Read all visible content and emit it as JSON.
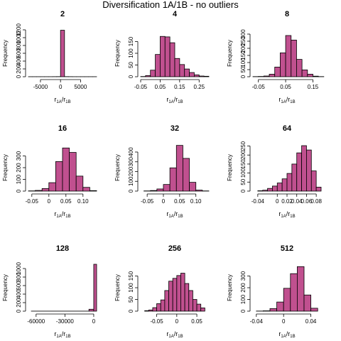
{
  "title": "Diversification 1A/1B - no outliers",
  "colors": {
    "bar_fill": "#C0508F",
    "bar_stroke": "#000000",
    "axis": "#000000"
  },
  "chart_data": [
    {
      "type": "bar",
      "title": "2",
      "ylabel": "Frequency",
      "xlabel": "r1A/r1B",
      "xlim": [
        -8000,
        9000
      ],
      "ylim": [
        0,
        1200
      ],
      "xticks": [
        -5000,
        0,
        5000
      ],
      "yticks": [
        0,
        200,
        400,
        600,
        800,
        1000,
        1200
      ],
      "bins": [
        {
          "x0": -8000,
          "x1": -7000,
          "v": 1
        },
        {
          "x0": -7000,
          "x1": -6000,
          "v": 1
        },
        {
          "x0": -6000,
          "x1": -5000,
          "v": 1
        },
        {
          "x0": -5000,
          "x1": -4000,
          "v": 1
        },
        {
          "x0": -4000,
          "x1": -3000,
          "v": 1
        },
        {
          "x0": -3000,
          "x1": -2000,
          "v": 1
        },
        {
          "x0": -2000,
          "x1": -1000,
          "v": 2
        },
        {
          "x0": -1000,
          "x1": 0,
          "v": 3
        },
        {
          "x0": 0,
          "x1": 1000,
          "v": 1190
        },
        {
          "x0": 1000,
          "x1": 2000,
          "v": 3
        },
        {
          "x0": 2000,
          "x1": 3000,
          "v": 2
        },
        {
          "x0": 3000,
          "x1": 4000,
          "v": 1
        },
        {
          "x0": 4000,
          "x1": 5000,
          "v": 1
        },
        {
          "x0": 5000,
          "x1": 6000,
          "v": 1
        },
        {
          "x0": 6000,
          "x1": 7000,
          "v": 1
        },
        {
          "x0": 7000,
          "x1": 8000,
          "v": 1
        },
        {
          "x0": 8000,
          "x1": 9000,
          "v": 1
        }
      ]
    },
    {
      "type": "bar",
      "title": "4",
      "ylabel": "Frequency",
      "xlabel": "r1A/r1B",
      "xlim": [
        -0.05,
        0.3
      ],
      "ylim": [
        0,
        200
      ],
      "xticks": [
        -0.05,
        0.05,
        0.15,
        0.25
      ],
      "yticks": [
        0,
        50,
        100,
        150
      ],
      "bins": [
        {
          "x0": -0.05,
          "x1": -0.025,
          "v": 1
        },
        {
          "x0": -0.025,
          "x1": 0.0,
          "v": 5
        },
        {
          "x0": 0.0,
          "x1": 0.025,
          "v": 28
        },
        {
          "x0": 0.025,
          "x1": 0.05,
          "v": 95
        },
        {
          "x0": 0.05,
          "x1": 0.075,
          "v": 172
        },
        {
          "x0": 0.075,
          "x1": 0.1,
          "v": 170
        },
        {
          "x0": 0.1,
          "x1": 0.125,
          "v": 145
        },
        {
          "x0": 0.125,
          "x1": 0.15,
          "v": 78
        },
        {
          "x0": 0.15,
          "x1": 0.175,
          "v": 52
        },
        {
          "x0": 0.175,
          "x1": 0.2,
          "v": 33
        },
        {
          "x0": 0.2,
          "x1": 0.225,
          "v": 18
        },
        {
          "x0": 0.225,
          "x1": 0.25,
          "v": 8
        },
        {
          "x0": 0.25,
          "x1": 0.275,
          "v": 3
        },
        {
          "x0": 0.275,
          "x1": 0.3,
          "v": 2
        }
      ]
    },
    {
      "type": "bar",
      "title": "8",
      "ylabel": "Frequency",
      "xlabel": "r1A/r1B",
      "xlim": [
        -0.07,
        0.18
      ],
      "ylim": [
        0,
        330
      ],
      "xticks": [
        -0.05,
        0.05,
        0.15
      ],
      "yticks": [
        0,
        50,
        100,
        150,
        200,
        250,
        300
      ],
      "bins": [
        {
          "x0": -0.07,
          "x1": -0.05,
          "v": 1
        },
        {
          "x0": -0.05,
          "x1": -0.03,
          "v": 2
        },
        {
          "x0": -0.03,
          "x1": -0.01,
          "v": 5
        },
        {
          "x0": -0.01,
          "x1": 0.01,
          "v": 18
        },
        {
          "x0": 0.01,
          "x1": 0.03,
          "v": 68
        },
        {
          "x0": 0.03,
          "x1": 0.05,
          "v": 168
        },
        {
          "x0": 0.05,
          "x1": 0.07,
          "v": 290
        },
        {
          "x0": 0.07,
          "x1": 0.09,
          "v": 258
        },
        {
          "x0": 0.09,
          "x1": 0.11,
          "v": 122
        },
        {
          "x0": 0.11,
          "x1": 0.13,
          "v": 48
        },
        {
          "x0": 0.13,
          "x1": 0.15,
          "v": 18
        },
        {
          "x0": 0.15,
          "x1": 0.17,
          "v": 4
        },
        {
          "x0": 0.17,
          "x1": 0.19,
          "v": 1
        }
      ]
    },
    {
      "type": "bar",
      "title": "16",
      "ylabel": "Frequency",
      "xlabel": "r1A/r1B",
      "xlim": [
        -0.06,
        0.14
      ],
      "ylim": [
        0,
        400
      ],
      "xticks": [
        -0.05,
        0.0,
        0.05,
        0.1
      ],
      "yticks": [
        0,
        100,
        200,
        300
      ],
      "bins": [
        {
          "x0": -0.06,
          "x1": -0.04,
          "v": 2
        },
        {
          "x0": -0.04,
          "x1": -0.02,
          "v": 6
        },
        {
          "x0": -0.02,
          "x1": 0.0,
          "v": 22
        },
        {
          "x0": 0.0,
          "x1": 0.02,
          "v": 72
        },
        {
          "x0": 0.02,
          "x1": 0.04,
          "v": 252
        },
        {
          "x0": 0.04,
          "x1": 0.06,
          "v": 368
        },
        {
          "x0": 0.06,
          "x1": 0.08,
          "v": 330
        },
        {
          "x0": 0.08,
          "x1": 0.1,
          "v": 128
        },
        {
          "x0": 0.1,
          "x1": 0.12,
          "v": 32
        },
        {
          "x0": 0.12,
          "x1": 0.14,
          "v": 4
        }
      ]
    },
    {
      "type": "bar",
      "title": "32",
      "ylabel": "Frequency",
      "xlabel": "r1A/r1B",
      "xlim": [
        -0.07,
        0.14
      ],
      "ylim": [
        0,
        480
      ],
      "xticks": [
        -0.05,
        0.0,
        0.05,
        0.1
      ],
      "yticks": [
        0,
        100,
        200,
        300,
        400
      ],
      "bins": [
        {
          "x0": -0.06,
          "x1": -0.04,
          "v": 2
        },
        {
          "x0": -0.04,
          "x1": -0.02,
          "v": 6
        },
        {
          "x0": -0.02,
          "x1": 0.0,
          "v": 22
        },
        {
          "x0": 0.0,
          "x1": 0.02,
          "v": 68
        },
        {
          "x0": 0.02,
          "x1": 0.04,
          "v": 238
        },
        {
          "x0": 0.04,
          "x1": 0.06,
          "v": 468
        },
        {
          "x0": 0.06,
          "x1": 0.08,
          "v": 335
        },
        {
          "x0": 0.08,
          "x1": 0.1,
          "v": 90
        },
        {
          "x0": 0.1,
          "x1": 0.12,
          "v": 10
        },
        {
          "x0": 0.12,
          "x1": 0.14,
          "v": 2
        }
      ]
    },
    {
      "type": "bar",
      "title": "64",
      "ylabel": "Frequency",
      "xlabel": "r1A/r1B",
      "xlim": [
        -0.05,
        0.09
      ],
      "ylim": [
        0,
        260
      ],
      "xticks": [
        -0.04,
        0.0,
        0.02,
        0.04,
        0.06,
        0.08
      ],
      "yticks": [
        0,
        50,
        100,
        150,
        200,
        250
      ],
      "bins": [
        {
          "x0": -0.04,
          "x1": -0.03,
          "v": 2
        },
        {
          "x0": -0.03,
          "x1": -0.02,
          "v": 5
        },
        {
          "x0": -0.02,
          "x1": -0.01,
          "v": 15
        },
        {
          "x0": -0.01,
          "x1": 0.0,
          "v": 28
        },
        {
          "x0": 0.0,
          "x1": 0.01,
          "v": 45
        },
        {
          "x0": 0.01,
          "x1": 0.02,
          "v": 68
        },
        {
          "x0": 0.02,
          "x1": 0.03,
          "v": 98
        },
        {
          "x0": 0.03,
          "x1": 0.04,
          "v": 150
        },
        {
          "x0": 0.04,
          "x1": 0.05,
          "v": 212
        },
        {
          "x0": 0.05,
          "x1": 0.06,
          "v": 252
        },
        {
          "x0": 0.06,
          "x1": 0.07,
          "v": 228
        },
        {
          "x0": 0.07,
          "x1": 0.08,
          "v": 112
        },
        {
          "x0": 0.08,
          "x1": 0.09,
          "v": 22
        }
      ]
    },
    {
      "type": "bar",
      "title": "128",
      "ylabel": "Frequency",
      "xlabel": "r1A/r1B",
      "xlim": [
        -68000,
        3000
      ],
      "ylim": [
        0,
        1100
      ],
      "xticks": [
        -60000,
        -30000,
        0
      ],
      "yticks": [
        0,
        200,
        400,
        600,
        800,
        1000
      ],
      "bins": [
        {
          "x0": -65000,
          "x1": -5000,
          "v": 1
        },
        {
          "x0": -5000,
          "x1": 0,
          "v": 45
        },
        {
          "x0": 0,
          "x1": 3000,
          "v": 1100
        }
      ]
    },
    {
      "type": "bar",
      "title": "256",
      "ylabel": "Frequency",
      "xlabel": "r1A/r1B",
      "xlim": [
        -0.09,
        0.08
      ],
      "ylim": [
        0,
        200
      ],
      "xticks": [
        -0.05,
        0.0,
        0.05
      ],
      "yticks": [
        0,
        50,
        100,
        150
      ],
      "bins": [
        {
          "x0": -0.08,
          "x1": -0.07,
          "v": 2
        },
        {
          "x0": -0.07,
          "x1": -0.06,
          "v": 5
        },
        {
          "x0": -0.06,
          "x1": -0.05,
          "v": 15
        },
        {
          "x0": -0.05,
          "x1": -0.04,
          "v": 32
        },
        {
          "x0": -0.04,
          "x1": -0.03,
          "v": 48
        },
        {
          "x0": -0.03,
          "x1": -0.02,
          "v": 88
        },
        {
          "x0": -0.02,
          "x1": -0.01,
          "v": 128
        },
        {
          "x0": -0.01,
          "x1": 0.0,
          "v": 140
        },
        {
          "x0": 0.0,
          "x1": 0.01,
          "v": 152
        },
        {
          "x0": 0.01,
          "x1": 0.02,
          "v": 162
        },
        {
          "x0": 0.02,
          "x1": 0.03,
          "v": 118
        },
        {
          "x0": 0.03,
          "x1": 0.04,
          "v": 88
        },
        {
          "x0": 0.04,
          "x1": 0.05,
          "v": 50
        },
        {
          "x0": 0.05,
          "x1": 0.06,
          "v": 30
        },
        {
          "x0": 0.06,
          "x1": 0.07,
          "v": 14
        }
      ]
    },
    {
      "type": "bar",
      "title": "512",
      "ylabel": "Frequency",
      "xlabel": "r1A/r1B",
      "xlim": [
        -0.045,
        0.055
      ],
      "ylim": [
        0,
        400
      ],
      "xticks": [
        -0.04,
        0.0,
        0.04
      ],
      "yticks": [
        0,
        100,
        200,
        300
      ],
      "bins": [
        {
          "x0": -0.04,
          "x1": -0.03,
          "v": 1
        },
        {
          "x0": -0.03,
          "x1": -0.02,
          "v": 3
        },
        {
          "x0": -0.02,
          "x1": -0.01,
          "v": 22
        },
        {
          "x0": -0.01,
          "x1": 0.0,
          "v": 78
        },
        {
          "x0": 0.0,
          "x1": 0.01,
          "v": 195
        },
        {
          "x0": 0.01,
          "x1": 0.02,
          "v": 320
        },
        {
          "x0": 0.02,
          "x1": 0.03,
          "v": 380
        },
        {
          "x0": 0.03,
          "x1": 0.04,
          "v": 138
        },
        {
          "x0": 0.04,
          "x1": 0.05,
          "v": 25
        }
      ]
    }
  ]
}
